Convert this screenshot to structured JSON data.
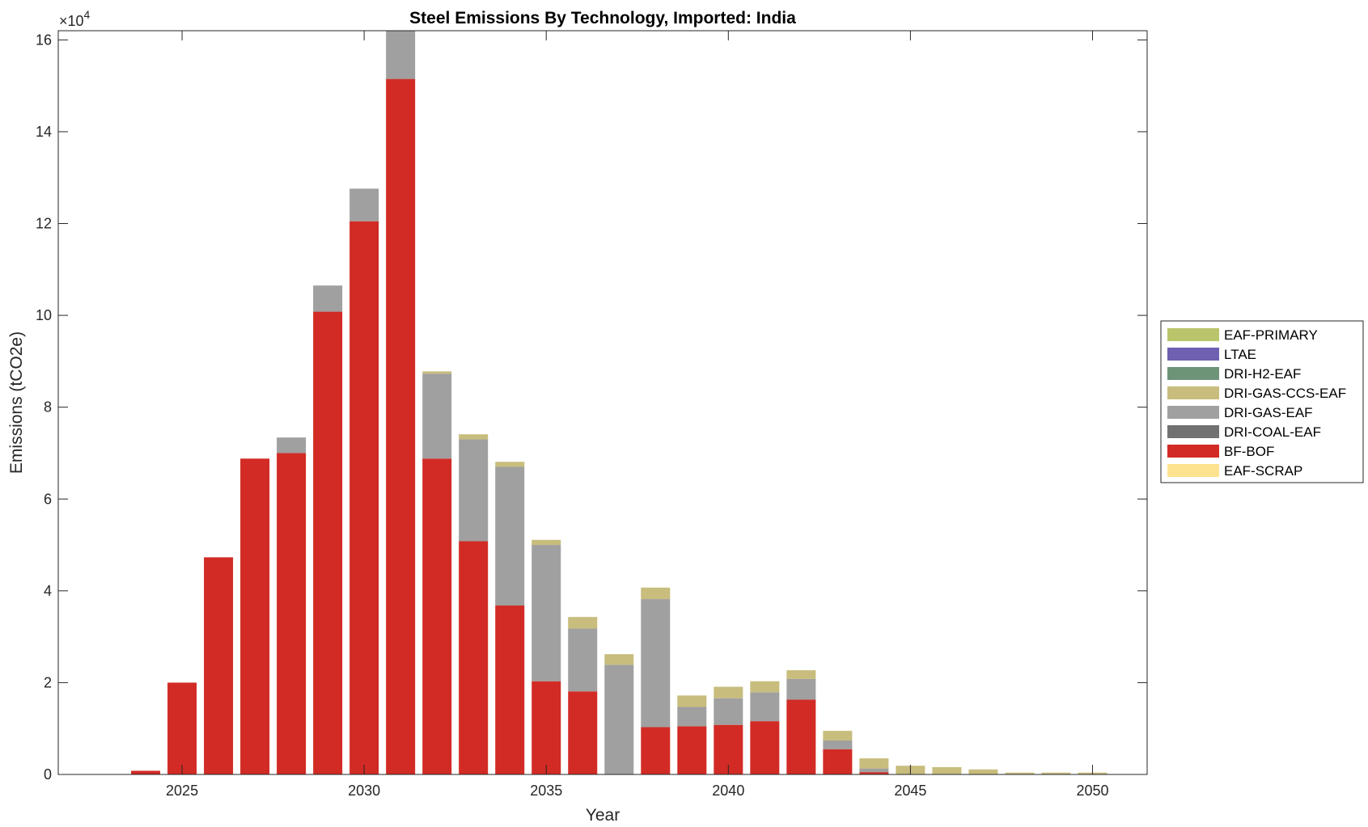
{
  "chart_data": {
    "type": "bar",
    "stacked": true,
    "title": "Steel Emissions By Technology, Imported: India",
    "xlabel": "Year",
    "ylabel": "Emissions (tCO2e)",
    "exponent_base": "×10",
    "exponent_power": "4",
    "scale": 10000,
    "xlim": [
      2021.6,
      2051.5
    ],
    "ylim": [
      0,
      162000
    ],
    "grid": false,
    "legend_position": "right",
    "x_ticks": [
      2025,
      2030,
      2035,
      2040,
      2045,
      2050
    ],
    "x_tick_labels": [
      "2025",
      "2030",
      "2035",
      "2040",
      "2045",
      "2050"
    ],
    "y_ticks": [
      0,
      20000,
      40000,
      60000,
      80000,
      100000,
      120000,
      140000,
      160000
    ],
    "y_tick_labels": [
      "0",
      "2",
      "4",
      "6",
      "8",
      "10",
      "12",
      "14",
      "16"
    ],
    "categories": [
      2024,
      2025,
      2026,
      2027,
      2028,
      2029,
      2030,
      2031,
      2032,
      2033,
      2034,
      2035,
      2036,
      2037,
      2038,
      2039,
      2040,
      2041,
      2042,
      2043,
      2044,
      2045,
      2046,
      2047,
      2048,
      2049,
      2050
    ],
    "series": [
      {
        "name": "EAF-SCRAP",
        "color": "#fde38f",
        "values": [
          0,
          0,
          0,
          0,
          0,
          0,
          0,
          0,
          0,
          0,
          0,
          0,
          0,
          0,
          0,
          0,
          0,
          0,
          0,
          0,
          0,
          0,
          0,
          0,
          0,
          0,
          0
        ]
      },
      {
        "name": "BF-BOF",
        "color": "#d22b25",
        "values": [
          800,
          20000,
          47300,
          68800,
          70000,
          100800,
          120500,
          151500,
          68800,
          50800,
          36800,
          20300,
          18100,
          0,
          10300,
          10500,
          10800,
          11600,
          16300,
          5500,
          500,
          0,
          0,
          0,
          0,
          0,
          0
        ]
      },
      {
        "name": "DRI-COAL-EAF",
        "color": "#717171",
        "values": [
          0,
          0,
          0,
          0,
          0,
          0,
          0,
          0,
          0,
          0,
          0,
          0,
          0,
          0,
          0,
          0,
          0,
          0,
          0,
          0,
          0,
          0,
          0,
          0,
          0,
          0,
          0
        ]
      },
      {
        "name": "DRI-GAS-EAF",
        "color": "#a0a0a0",
        "values": [
          0,
          0,
          0,
          0,
          3400,
          5700,
          7100,
          10700,
          18500,
          22200,
          30200,
          29700,
          13700,
          23900,
          27900,
          4200,
          5800,
          6300,
          4500,
          1900,
          800,
          0,
          0,
          0,
          0,
          0,
          0
        ]
      },
      {
        "name": "DRI-GAS-CCS-EAF",
        "color": "#c8bd7d",
        "values": [
          0,
          0,
          0,
          0,
          0,
          0,
          0,
          0,
          500,
          1100,
          1100,
          1100,
          2500,
          2300,
          2500,
          2500,
          2500,
          2400,
          1900,
          2100,
          2200,
          1900,
          1600,
          1100,
          400,
          400,
          400
        ]
      },
      {
        "name": "DRI-H2-EAF",
        "color": "#6e9478",
        "values": [
          0,
          0,
          0,
          0,
          0,
          0,
          0,
          0,
          0,
          0,
          0,
          0,
          0,
          0,
          0,
          0,
          0,
          0,
          0,
          0,
          0,
          0,
          0,
          0,
          0,
          0,
          0
        ]
      },
      {
        "name": "LTAE",
        "color": "#6f60b2",
        "values": [
          0,
          0,
          0,
          0,
          0,
          0,
          0,
          0,
          0,
          0,
          0,
          0,
          0,
          0,
          0,
          0,
          0,
          0,
          0,
          0,
          0,
          0,
          0,
          0,
          0,
          0,
          0
        ]
      },
      {
        "name": "EAF-PRIMARY",
        "color": "#bac46a",
        "values": [
          0,
          0,
          0,
          0,
          0,
          0,
          0,
          0,
          0,
          0,
          0,
          0,
          0,
          0,
          0,
          0,
          0,
          0,
          0,
          0,
          0,
          0,
          0,
          0,
          0,
          0,
          0
        ]
      }
    ],
    "legend_order": [
      "EAF-PRIMARY",
      "LTAE",
      "DRI-H2-EAF",
      "DRI-GAS-CCS-EAF",
      "DRI-GAS-EAF",
      "DRI-COAL-EAF",
      "BF-BOF",
      "EAF-SCRAP"
    ]
  }
}
